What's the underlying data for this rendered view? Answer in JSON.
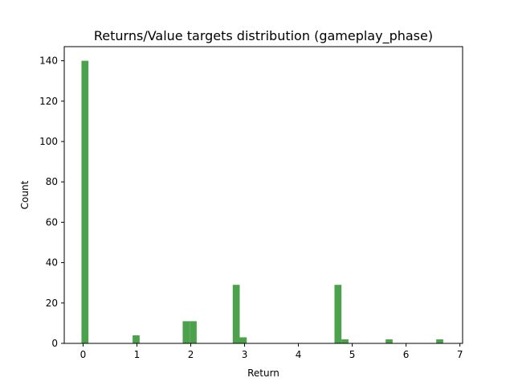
{
  "chart_data": {
    "type": "bar",
    "title": "Returns/Value targets distribution (gameplay_phase)",
    "xlabel": "Return",
    "ylabel": "Count",
    "xlim": [
      -0.35,
      7.05
    ],
    "ylim": [
      0,
      147
    ],
    "x_ticks": [
      0,
      1,
      2,
      3,
      4,
      5,
      6,
      7
    ],
    "y_ticks": [
      0,
      20,
      40,
      60,
      80,
      100,
      120,
      140
    ],
    "bar_color": "#4ca14c",
    "grid": false,
    "bins": [
      {
        "x0": -0.03,
        "x1": 0.1,
        "count": 140
      },
      {
        "x0": 0.92,
        "x1": 1.05,
        "count": 4
      },
      {
        "x0": 1.85,
        "x1": 1.98,
        "count": 11
      },
      {
        "x0": 1.98,
        "x1": 2.11,
        "count": 11
      },
      {
        "x0": 2.78,
        "x1": 2.91,
        "count": 29
      },
      {
        "x0": 2.91,
        "x1": 3.04,
        "count": 3
      },
      {
        "x0": 4.67,
        "x1": 4.8,
        "count": 29
      },
      {
        "x0": 4.8,
        "x1": 4.93,
        "count": 2
      },
      {
        "x0": 5.62,
        "x1": 5.75,
        "count": 2
      },
      {
        "x0": 6.56,
        "x1": 6.69,
        "count": 2
      }
    ]
  }
}
